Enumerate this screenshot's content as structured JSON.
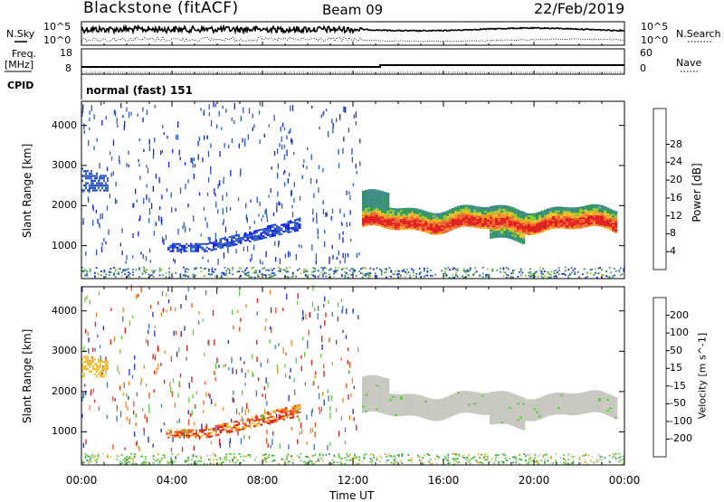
{
  "header": {
    "station": "Blackstone (fitACF)",
    "beam": "Beam 09",
    "date": "22/Feb/2019"
  },
  "noise_panel": {
    "left_label": "N.Sky",
    "right_label": "N.Search",
    "right_line_style": "dotted",
    "left_ticks": [
      "10^5",
      "10^0"
    ],
    "right_ticks": [
      "10^5",
      "10^0"
    ]
  },
  "freq_panel": {
    "left_label": "Freq.",
    "left_unit": "[MHz]",
    "right_label": "Nave",
    "right_line_style": "dotted",
    "left_ticks": [
      "18",
      "8"
    ],
    "right_ticks": [
      "60",
      "0"
    ]
  },
  "cpid": {
    "label": "CPID",
    "value": "normal (fast) 151"
  },
  "chart_data": [
    {
      "type": "heatmap",
      "quantity": "Power",
      "ylabel": "Slant Range [km]",
      "ylim": [
        180,
        4600
      ],
      "yticks": [
        "1000",
        "2000",
        "3000",
        "4000"
      ],
      "colorbar_label": "Power [dB]",
      "colorbar_ticks": [
        "4",
        "8",
        "12",
        "16",
        "20",
        "24",
        "28"
      ],
      "colorbar_colors": [
        "#1020ee",
        "#2f5cc0",
        "#3d8a8a",
        "#2e9a52",
        "#98c43a",
        "#f2c020",
        "#f5962a",
        "#f0632c",
        "#e02020"
      ],
      "features": [
        {
          "name": "daytime scatter band",
          "time_start": "12:30",
          "time_end": "23:30",
          "range_km": [
            1250,
            2100
          ],
          "level": "16-28 dB"
        },
        {
          "name": "morning echo band",
          "time_start": "04:00",
          "time_end": "09:30",
          "range_km": [
            850,
            1450
          ],
          "level": "4-8 dB"
        },
        {
          "name": "near-range ground clutter",
          "time_start": "00:00",
          "time_end": "24:00",
          "range_km": [
            180,
            420
          ],
          "level": "4-20 dB"
        }
      ]
    },
    {
      "type": "heatmap",
      "quantity": "Velocity",
      "ylabel": "Slant Range [km]",
      "ylim": [
        180,
        4600
      ],
      "yticks": [
        "1000",
        "2000",
        "3000",
        "4000"
      ],
      "colorbar_label": "Velocity [m s^-1]",
      "colorbar_ticks": [
        "200",
        "100",
        "50",
        "15",
        "-15",
        "-50",
        "-100",
        "-200"
      ],
      "colorbar_colors": [
        "#2030c0",
        "#3c7cb0",
        "#3a9a50",
        "#5ad040",
        "#c8c8c0",
        "#f0c030",
        "#f08a20",
        "#f05020",
        "#e01818"
      ],
      "features": [
        {
          "name": "ground scatter band",
          "time_start": "12:30",
          "time_end": "23:30",
          "range_km": [
            1200,
            2100
          ],
          "level": "-15 to 15"
        },
        {
          "name": "morning receding echoes",
          "time_start": "04:00",
          "time_end": "09:30",
          "range_km": [
            850,
            1450
          ],
          "level": "-50 to -200"
        }
      ]
    }
  ],
  "x_axis": {
    "label": "Time UT",
    "ticks": [
      "00:00",
      "04:00",
      "08:00",
      "12:00",
      "16:00",
      "20:00",
      "00:00"
    ]
  }
}
